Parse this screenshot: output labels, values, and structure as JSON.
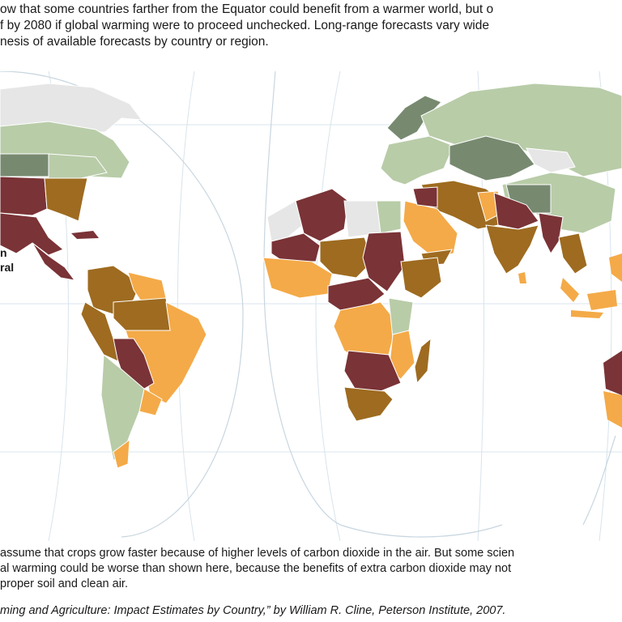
{
  "intro": {
    "line1": "ow that some countries farther from the Equator could benefit from a warmer world, but o",
    "line2": "f by 2080 if global warming were to proceed unchecked. Long-range forecasts vary wide",
    "line3": "nesis of available forecasts by country or region."
  },
  "legend": {
    "fragment1": "n",
    "fragment2": "ral"
  },
  "footnote": {
    "line1": "assume that crops grow faster because of higher levels of carbon dioxide in the air. But some scien",
    "line2": "al warming could be worse than shown here, because the benefits of extra carbon dioxide may not",
    "line3": "proper soil and clean air."
  },
  "source": "ming and Agriculture: Impact Estimates by Country,” by William R. Cline, Peterson Institute, 2007.",
  "colors": {
    "severe_decline": "#7a3336",
    "decline": "#9e6b20",
    "moderate_decline": "#f4aa48",
    "moderate_gain": "#b8cca8",
    "gain": "#778a70",
    "no_data": "#e6e6e6",
    "ocean": "#ffffff",
    "graticule": "#d8e4ec"
  }
}
